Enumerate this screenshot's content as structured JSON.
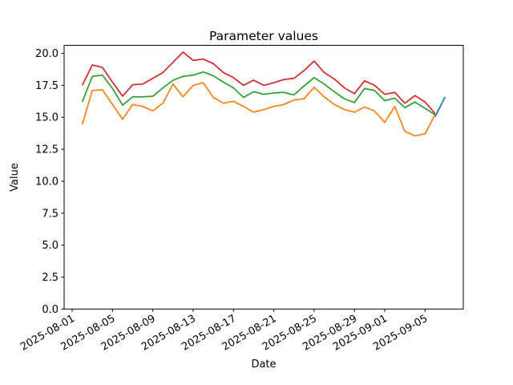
{
  "figure": {
    "background": "#ffffff"
  },
  "chart_data": {
    "type": "line",
    "title": "Parameter values",
    "xlabel": "Date",
    "ylabel": "Value",
    "grid": false,
    "legend": null,
    "x_start": "2025-08-02",
    "xlim_days": [
      -1.8,
      37.8
    ],
    "ylim": [
      0,
      20.63
    ],
    "yticks": {
      "values": [
        0.0,
        2.5,
        5.0,
        7.5,
        10.0,
        12.5,
        15.0,
        17.5,
        20.0
      ],
      "labels": [
        "0.0",
        "2.5",
        "5.0",
        "7.5",
        "10.0",
        "12.5",
        "15.0",
        "17.5",
        "20.0"
      ]
    },
    "xticks": [
      {
        "date": "2025-08-01",
        "label": "2025-08-01"
      },
      {
        "date": "2025-08-05",
        "label": "2025-08-05"
      },
      {
        "date": "2025-08-09",
        "label": "2025-08-09"
      },
      {
        "date": "2025-08-13",
        "label": "2025-08-13"
      },
      {
        "date": "2025-08-17",
        "label": "2025-08-17"
      },
      {
        "date": "2025-08-21",
        "label": "2025-08-21"
      },
      {
        "date": "2025-08-25",
        "label": "2025-08-25"
      },
      {
        "date": "2025-08-29",
        "label": "2025-08-29"
      },
      {
        "date": "2025-09-01",
        "label": "2025-09-01"
      },
      {
        "date": "2025-09-05",
        "label": "2025-09-05"
      }
    ],
    "dates": [
      "2025-08-02",
      "2025-08-03",
      "2025-08-04",
      "2025-08-05",
      "2025-08-06",
      "2025-08-07",
      "2025-08-08",
      "2025-08-09",
      "2025-08-10",
      "2025-08-11",
      "2025-08-12",
      "2025-08-13",
      "2025-08-14",
      "2025-08-15",
      "2025-08-16",
      "2025-08-17",
      "2025-08-18",
      "2025-08-19",
      "2025-08-20",
      "2025-08-21",
      "2025-08-22",
      "2025-08-23",
      "2025-08-24",
      "2025-08-25",
      "2025-08-26",
      "2025-08-27",
      "2025-08-28",
      "2025-08-29",
      "2025-08-30",
      "2025-08-31",
      "2025-09-01",
      "2025-09-02",
      "2025-09-03",
      "2025-09-04",
      "2025-09-05",
      "2025-09-06"
    ],
    "series": [
      {
        "name": "orange-series",
        "color": "#ff7f0e",
        "values": [
          14.45,
          17.1,
          17.15,
          16.0,
          14.85,
          16.0,
          15.85,
          15.5,
          16.1,
          17.6,
          16.6,
          17.5,
          17.7,
          16.55,
          16.1,
          16.25,
          15.85,
          15.4,
          15.6,
          15.85,
          16.0,
          16.35,
          16.45,
          17.35,
          16.6,
          16.0,
          15.6,
          15.4,
          15.8,
          15.5,
          14.6,
          15.85,
          13.9,
          13.55,
          13.7,
          15.2
        ]
      },
      {
        "name": "green-series",
        "color": "#2ca02c",
        "values": [
          16.2,
          18.2,
          18.3,
          17.25,
          15.95,
          16.6,
          16.6,
          16.65,
          17.3,
          17.9,
          18.2,
          18.3,
          18.55,
          18.25,
          17.75,
          17.3,
          16.55,
          17.0,
          16.8,
          16.9,
          16.95,
          16.75,
          17.45,
          18.1,
          17.6,
          17.0,
          16.45,
          16.15,
          17.25,
          17.1,
          16.3,
          16.5,
          15.75,
          16.2,
          15.7,
          15.2
        ]
      },
      {
        "name": "red-series",
        "color": "#d62728",
        "values": [
          17.5,
          19.1,
          18.9,
          17.75,
          16.65,
          17.55,
          17.6,
          18.05,
          18.5,
          19.3,
          20.1,
          19.45,
          19.55,
          19.2,
          18.5,
          18.1,
          17.5,
          17.9,
          17.5,
          17.7,
          17.95,
          18.05,
          18.65,
          19.4,
          18.5,
          18.0,
          17.3,
          16.85,
          17.85,
          17.5,
          16.8,
          16.95,
          16.1,
          16.7,
          16.2,
          15.3
        ]
      },
      {
        "name": "blue-series",
        "color": "#1f77b4",
        "dates": [
          "2025-09-06",
          "2025-09-07"
        ],
        "values": [
          15.05,
          16.6
        ]
      }
    ]
  }
}
